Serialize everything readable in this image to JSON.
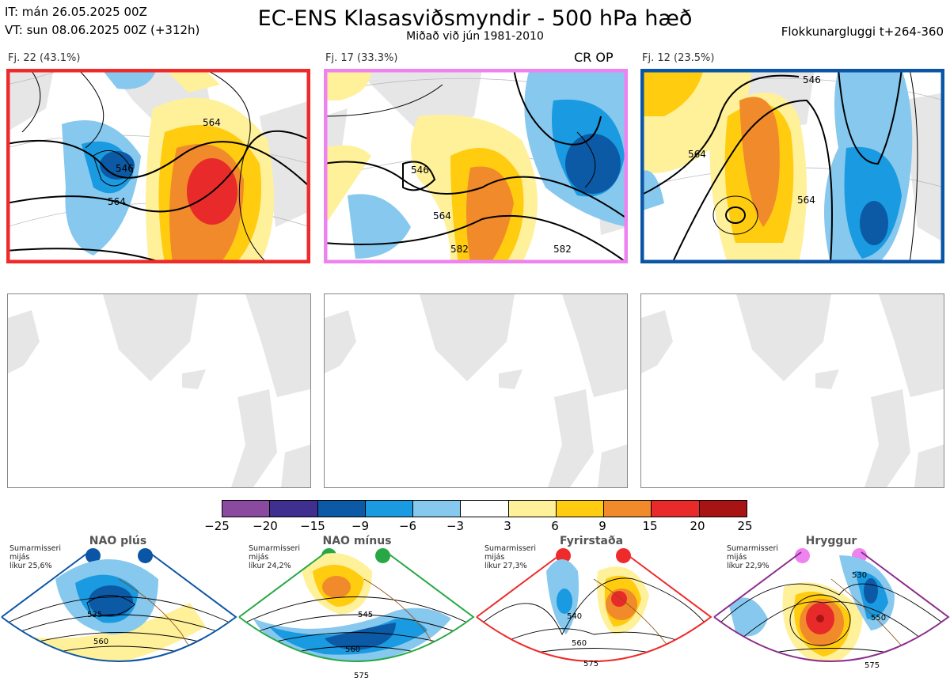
{
  "header": {
    "it_line": "IT: mán 26.05.2025 00Z",
    "vt_line": "VT: sun 08.06.2025 00Z  (+312h)",
    "title": "EC-ENS Klasasviðsmyndir - 500 hPa hæð",
    "subtitle": "Miðað við jún 1981-2010",
    "window": "Flokkunargluggi t+264-360"
  },
  "clusters": [
    {
      "label": "Fj. 22 (43.1%)",
      "color": "#ee2a2a",
      "tag": ""
    },
    {
      "label": "Fj. 17 (33.3%)",
      "color": "#ee82ee",
      "tag": "CR OP"
    },
    {
      "label": "Fj. 12 (23.5%)",
      "color": "#0b55a6",
      "tag": ""
    }
  ],
  "contour_labels": [
    "546",
    "564",
    "582"
  ],
  "colorbar": {
    "ticks": [
      "−25",
      "−20",
      "−15",
      "−9",
      "−6",
      "−3",
      "3",
      "6",
      "9",
      "15",
      "20",
      "25"
    ],
    "colors": [
      "#8a4a9f",
      "#3f3090",
      "#0c5aa6",
      "#1a9ae0",
      "#86c8ee",
      "#ffffff",
      "#fff09a",
      "#ffcc10",
      "#f08a2a",
      "#e82a2a",
      "#a81414"
    ]
  },
  "regimes": [
    {
      "name": "NAO plús",
      "desc": [
        "Sumarmisseri",
        "mijás",
        "líkur 25,6%"
      ],
      "dot_color": "#0b55a6",
      "frame": "#0b55a6",
      "labels": [
        "535",
        "560"
      ]
    },
    {
      "name": "NAO mínus",
      "desc": [
        "Sumarmisseri",
        "mijás",
        "líkur 24,2%"
      ],
      "dot_color": "#27a844",
      "frame": "#27a844",
      "labels": [
        "545",
        "560",
        "575"
      ]
    },
    {
      "name": "Fyrirstaða",
      "desc": [
        "Sumarmisseri",
        "mijás",
        "líkur 27,3%"
      ],
      "dot_color": "#ee2a2a",
      "frame": "#ee2a2a",
      "labels": [
        "540",
        "560",
        "575"
      ]
    },
    {
      "name": "Hryggur",
      "desc": [
        "Sumarmisseri",
        "mijás",
        "líkur 22,9%"
      ],
      "dot_color": "#ee82ee",
      "frame": "#8c2c8c",
      "labels": [
        "530",
        "550",
        "575"
      ]
    }
  ]
}
